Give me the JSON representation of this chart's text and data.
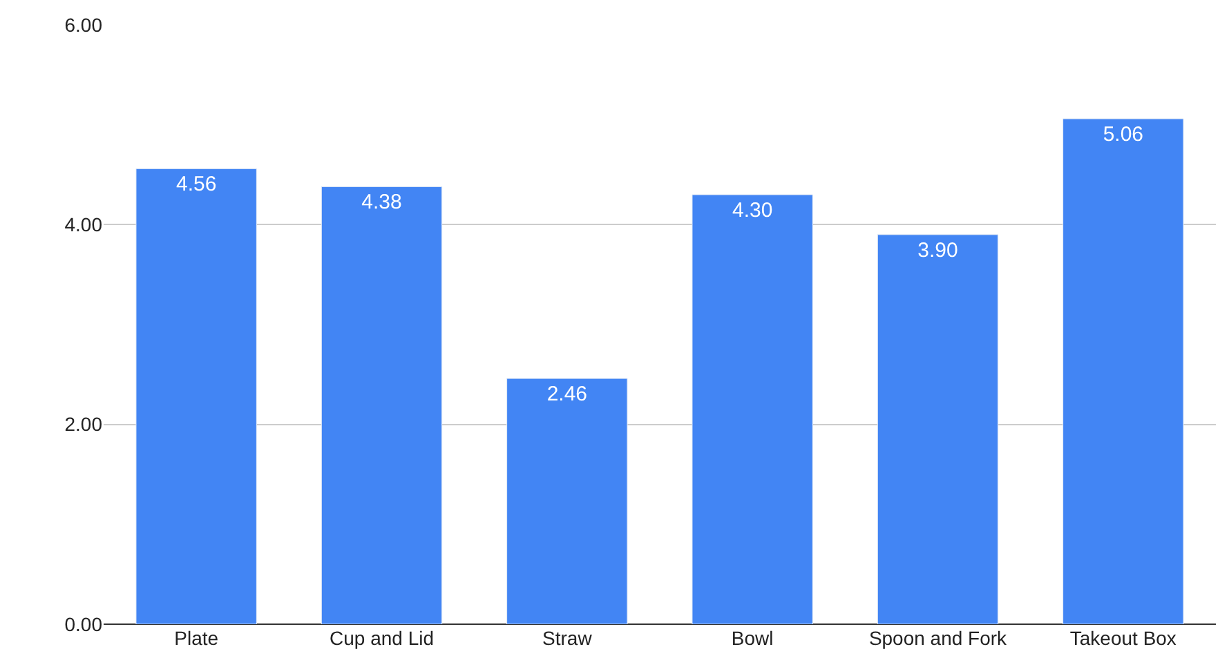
{
  "chart_data": {
    "type": "bar",
    "categories": [
      "Plate",
      "Cup and Lid",
      "Straw",
      "Bowl",
      "Spoon and Fork",
      "Takeout Box"
    ],
    "values": [
      4.56,
      4.38,
      2.46,
      4.3,
      3.9,
      5.06
    ],
    "value_labels": [
      "4.56",
      "4.38",
      "2.46",
      "4.30",
      "3.90",
      "5.06"
    ],
    "color": "#4285f4",
    "ylim": [
      0,
      6
    ],
    "yticks": [
      {
        "value": 0,
        "label": "0.00"
      },
      {
        "value": 2,
        "label": "2.00"
      },
      {
        "value": 4,
        "label": "4.00"
      },
      {
        "value": 6,
        "label": "6.00"
      }
    ],
    "grid": "y",
    "legend": false
  }
}
